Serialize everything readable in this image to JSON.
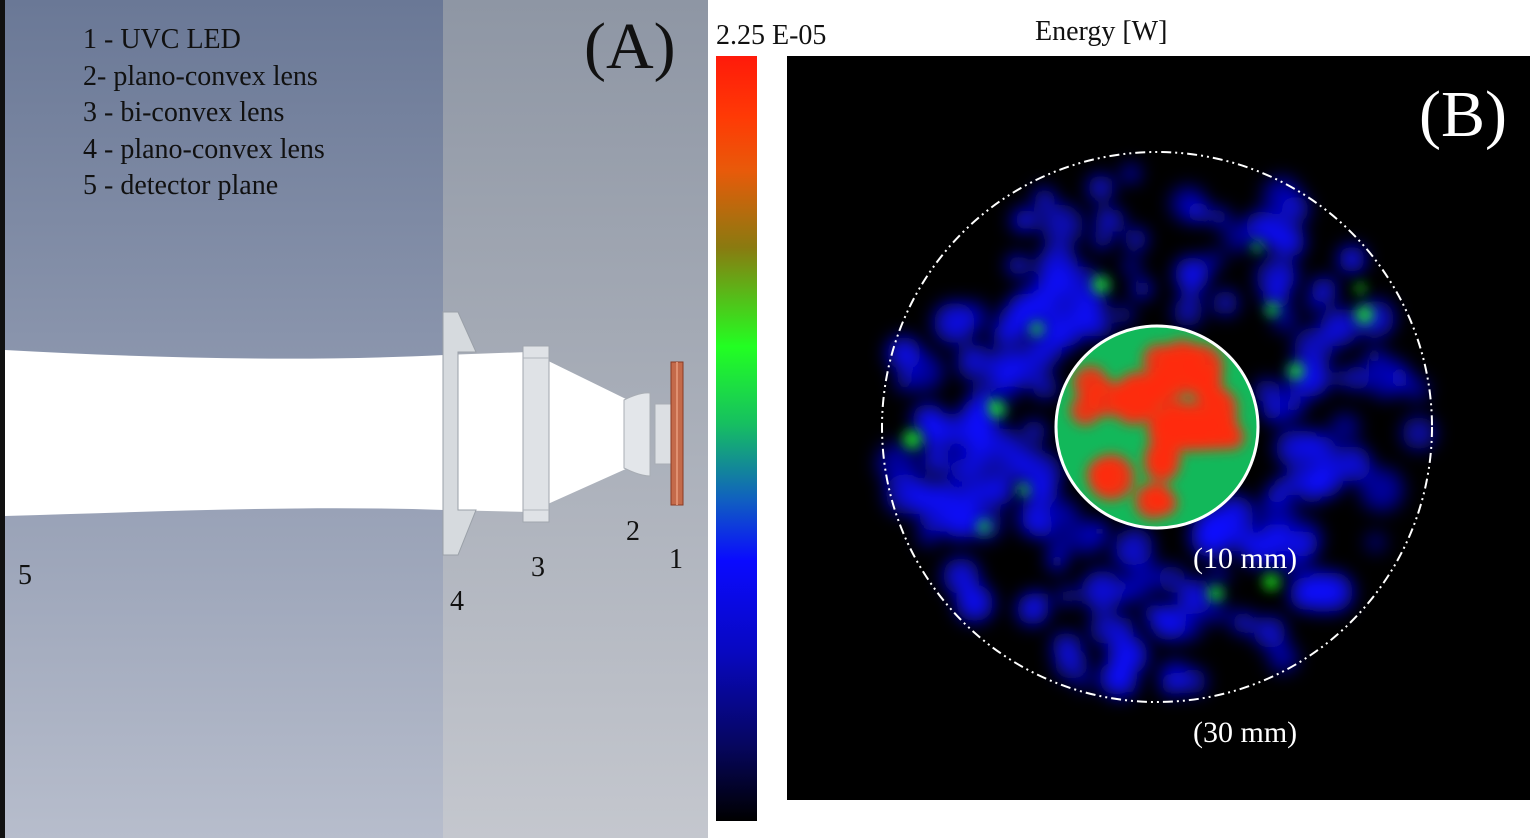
{
  "panel_a": {
    "label": "(A)",
    "legend": [
      "1 - UVC LED",
      "2- plano-convex lens",
      "3 - bi-convex lens",
      "4 - plano-convex lens",
      "5 - detector plane"
    ],
    "component_numbers": [
      "1",
      "2",
      "3",
      "4",
      "5"
    ]
  },
  "panel_b": {
    "label": "(B)",
    "title": "Energy [W]",
    "colorbar_max": "2.25 E-05",
    "inner_circle_label": "(10 mm)",
    "outer_circle_label": "(30 mm)",
    "colors": {
      "high": "#ff2a0a",
      "mid": "#22ff22",
      "low": "#0a0aff",
      "background": "#000000"
    }
  }
}
